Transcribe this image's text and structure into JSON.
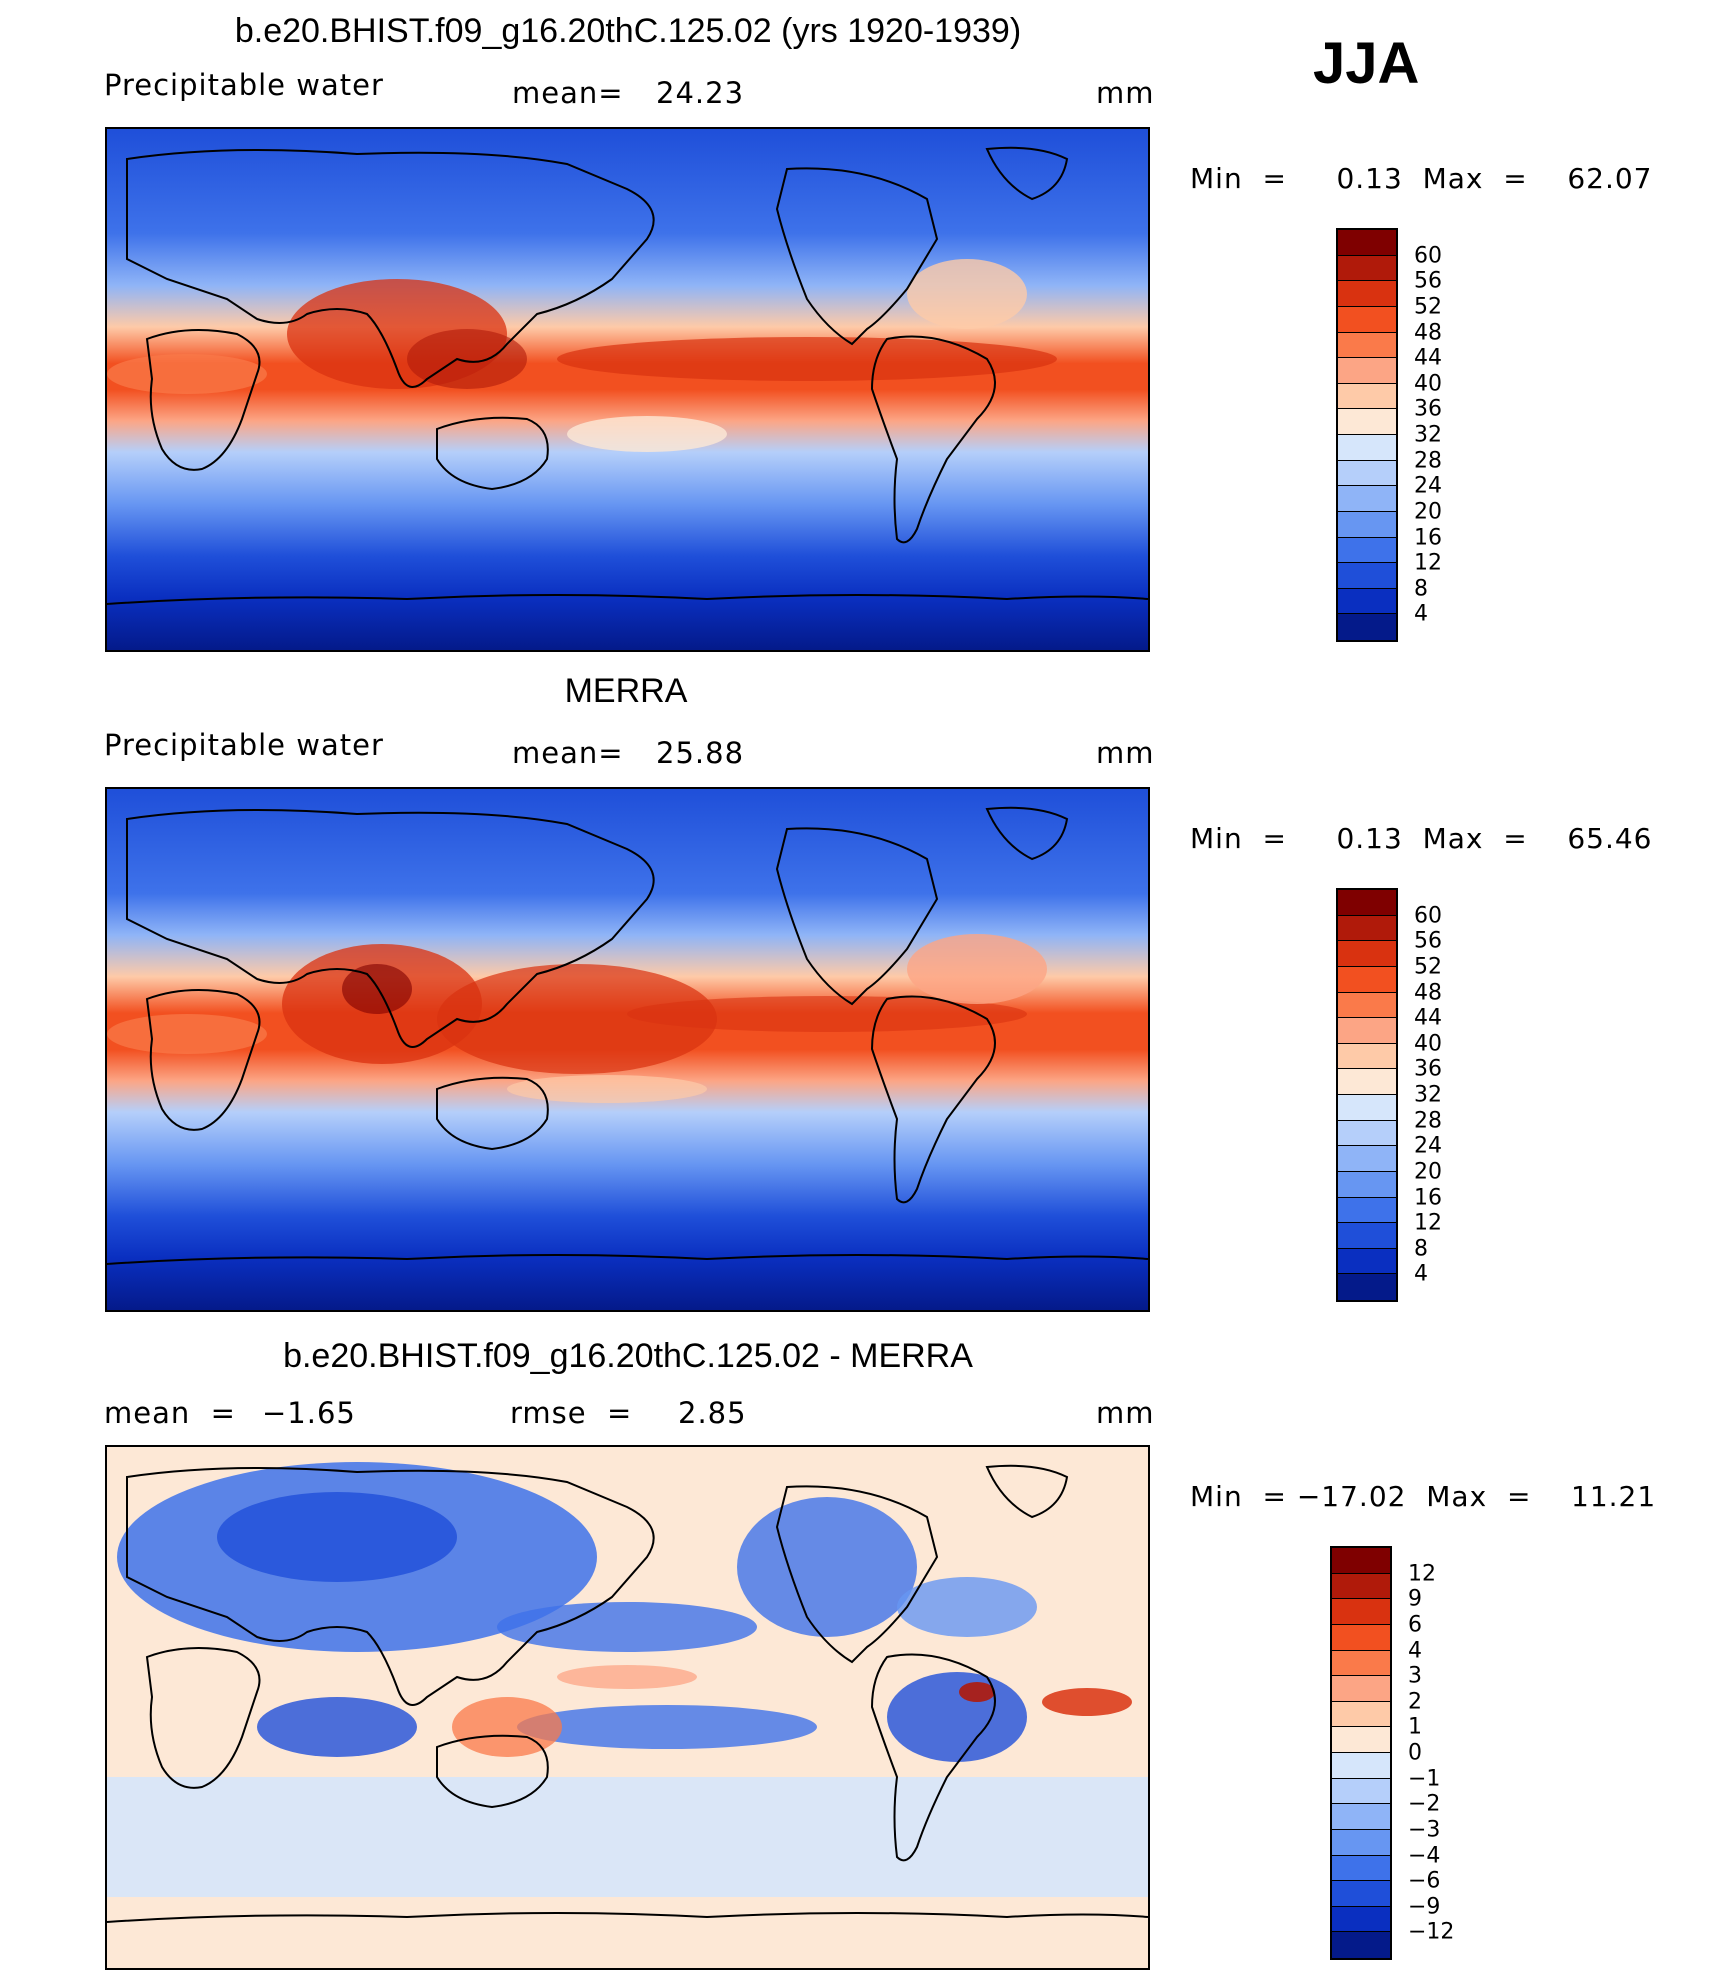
{
  "season": "JJA",
  "panels": [
    {
      "title": "b.e20.BHIST.f09_g16.20thC.125.02 (yrs 1920-1939)",
      "variable": "Precipitable  water",
      "mean_label": "mean=",
      "mean_value": "24.23",
      "units": "mm",
      "minmax": "Min  =     0.13  Max  =    62.07",
      "colorbar": {
        "labels": [
          "60",
          "56",
          "52",
          "48",
          "44",
          "40",
          "36",
          "32",
          "28",
          "24",
          "20",
          "16",
          "12",
          "8",
          "4"
        ],
        "colors": [
          "#7f0000",
          "#b01a0a",
          "#d93210",
          "#f25020",
          "#fa7a4a",
          "#fca585",
          "#fecaa8",
          "#fde8d6",
          "#d6e6fb",
          "#b5cffa",
          "#8fb4f7",
          "#6796f2",
          "#3e72ea",
          "#1f4fd9",
          "#0a2fc0",
          "#041a8a"
        ]
      }
    },
    {
      "title": "MERRA",
      "variable": "Precipitable  water",
      "mean_label": "mean=",
      "mean_value": "25.88",
      "units": "mm",
      "minmax": "Min  =     0.13  Max  =    65.46",
      "colorbar": {
        "labels": [
          "60",
          "56",
          "52",
          "48",
          "44",
          "40",
          "36",
          "32",
          "28",
          "24",
          "20",
          "16",
          "12",
          "8",
          "4"
        ],
        "colors": [
          "#7f0000",
          "#b01a0a",
          "#d93210",
          "#f25020",
          "#fa7a4a",
          "#fca585",
          "#fecaa8",
          "#fde8d6",
          "#d6e6fb",
          "#b5cffa",
          "#8fb4f7",
          "#6796f2",
          "#3e72ea",
          "#1f4fd9",
          "#0a2fc0",
          "#041a8a"
        ]
      }
    },
    {
      "title": "b.e20.BHIST.f09_g16.20thC.125.02 - MERRA",
      "mean_label": "mean  =",
      "mean_value": "−1.65",
      "rmse_label": "rmse  =",
      "rmse_value": "2.85",
      "units": "mm",
      "minmax": "Min  = −17.02  Max  =    11.21",
      "colorbar": {
        "labels": [
          "12",
          "9",
          "6",
          "4",
          "3",
          "2",
          "1",
          "0",
          "−1",
          "−2",
          "−3",
          "−4",
          "−6",
          "−9",
          "−12"
        ],
        "colors": [
          "#7f0000",
          "#b01a0a",
          "#d93210",
          "#f25020",
          "#fa7a4a",
          "#fca585",
          "#fecaa8",
          "#fde8d6",
          "#d6e6fb",
          "#b5cffa",
          "#8fb4f7",
          "#6796f2",
          "#3e72ea",
          "#1f4fd9",
          "#0a2fc0",
          "#041a8a"
        ]
      }
    }
  ]
}
